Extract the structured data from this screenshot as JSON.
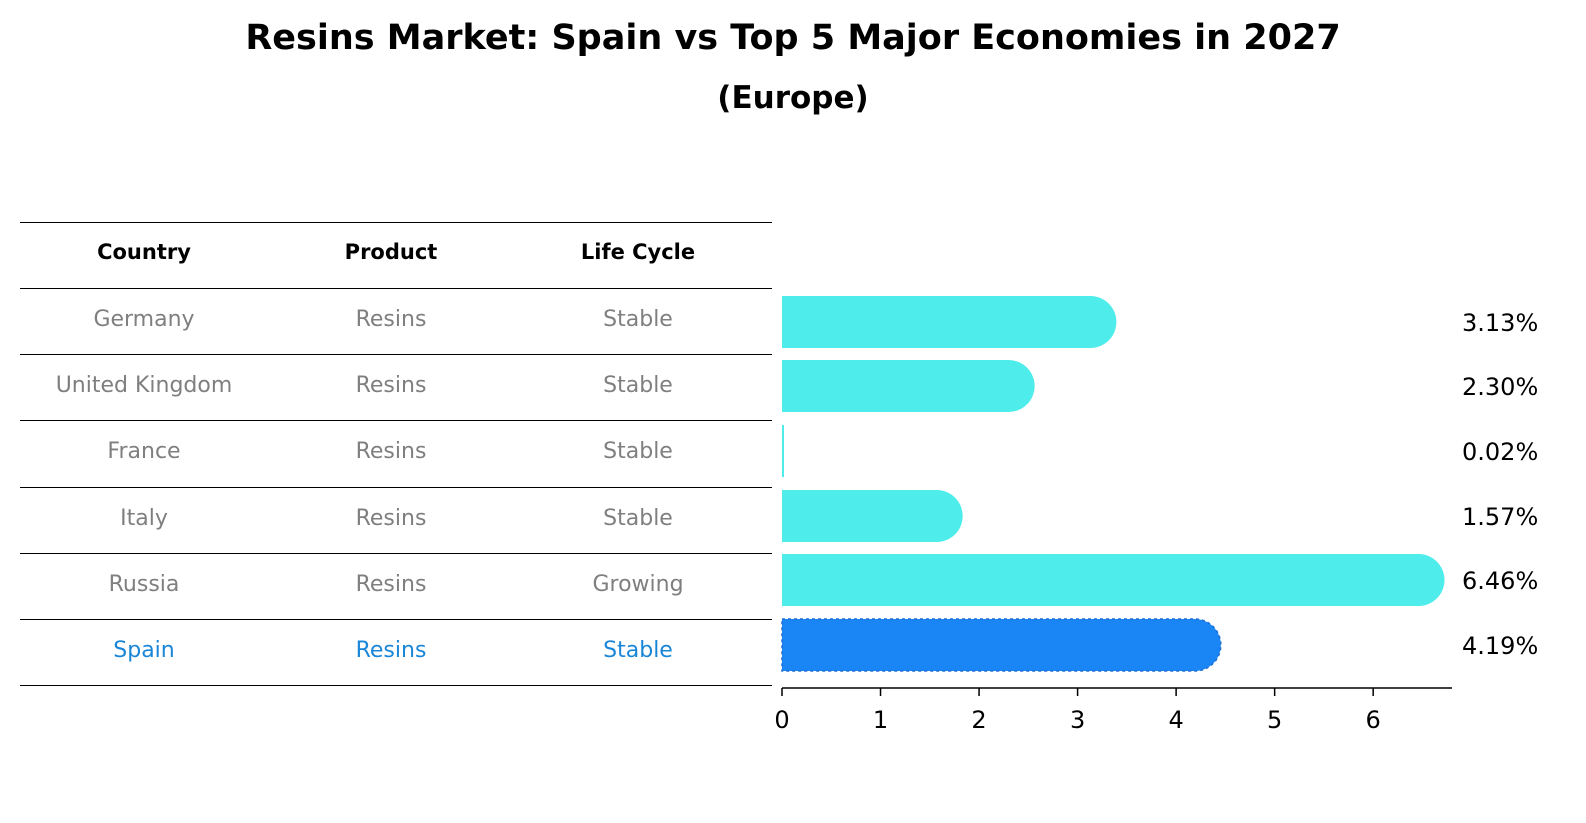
{
  "header": {
    "title": "Resins Market: Spain vs Top 5 Major Economies in 2027",
    "subtitle": "(Europe)"
  },
  "table": {
    "columns": [
      "Country",
      "Product",
      "Life Cycle"
    ],
    "rows": [
      {
        "country": "Germany",
        "product": "Resins",
        "life_cycle": "Stable",
        "highlight": false
      },
      {
        "country": "United Kingdom",
        "product": "Resins",
        "life_cycle": "Stable",
        "highlight": false
      },
      {
        "country": "France",
        "product": "Resins",
        "life_cycle": "Stable",
        "highlight": false
      },
      {
        "country": "Italy",
        "product": "Resins",
        "life_cycle": "Stable",
        "highlight": false
      },
      {
        "country": "Russia",
        "product": "Resins",
        "life_cycle": "Growing",
        "highlight": false
      },
      {
        "country": "Spain",
        "product": "Resins",
        "life_cycle": "Stable",
        "highlight": true
      }
    ]
  },
  "colors": {
    "bar": "#4eeceb",
    "bar_highlight": "#1a86f5",
    "row_text": "#7f7f7f",
    "row_text_highlight": "#1a86d8"
  },
  "chart_data": {
    "type": "bar",
    "orientation": "horizontal",
    "categories": [
      "Germany",
      "United Kingdom",
      "France",
      "Italy",
      "Russia",
      "Spain"
    ],
    "values": [
      3.13,
      2.3,
      0.02,
      1.57,
      6.46,
      4.19
    ],
    "value_labels": [
      "3.13%",
      "2.30%",
      "0.02%",
      "1.57%",
      "6.46%",
      "4.19%"
    ],
    "highlight_category": "Spain",
    "xlim": [
      0,
      6.8
    ],
    "xticks": [
      0,
      1,
      2,
      3,
      4,
      5,
      6
    ],
    "xlabel": "",
    "ylabel": "",
    "grid": false
  }
}
